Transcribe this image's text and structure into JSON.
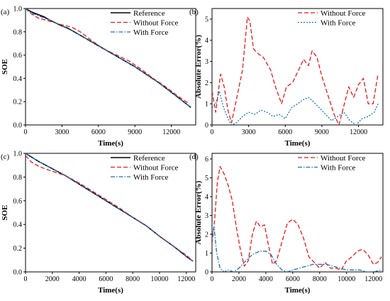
{
  "figure": {
    "colors": {
      "reference": "#000000",
      "without_force": "#e8191b",
      "with_force": "#1a73b0",
      "with_force_err_b": "#1a73b0"
    }
  },
  "chart_data": [
    {
      "id": "a",
      "panel_label": "(a)",
      "type": "line",
      "xlabel": "Time(s)",
      "ylabel": "SOE",
      "xlim": [
        0,
        14000
      ],
      "ylim": [
        0,
        1.0
      ],
      "xticks": [
        0,
        3000,
        6000,
        9000,
        12000
      ],
      "yticks": [
        0.0,
        0.2,
        0.4,
        0.6,
        0.8,
        1.0
      ],
      "legend": {
        "placement": "top-right"
      },
      "series": [
        {
          "name": "Reference",
          "style": "solid",
          "color": "#000000",
          "points": [
            [
              0,
              1.0
            ],
            [
              500,
              0.97
            ],
            [
              1000,
              0.95
            ],
            [
              1500,
              0.93
            ],
            [
              2000,
              0.9
            ],
            [
              3000,
              0.85
            ],
            [
              3500,
              0.83
            ],
            [
              4000,
              0.8
            ],
            [
              5000,
              0.74
            ],
            [
              6000,
              0.68
            ],
            [
              7000,
              0.62
            ],
            [
              8000,
              0.56
            ],
            [
              9000,
              0.5
            ],
            [
              10000,
              0.43
            ],
            [
              11000,
              0.36
            ],
            [
              12000,
              0.28
            ],
            [
              13000,
              0.2
            ],
            [
              13600,
              0.15
            ]
          ]
        },
        {
          "name": "Without Force",
          "style": "dash",
          "color": "#e8191b",
          "points": [
            [
              0,
              1.0
            ],
            [
              400,
              0.96
            ],
            [
              1000,
              0.92
            ],
            [
              2000,
              0.89
            ],
            [
              3000,
              0.86
            ],
            [
              3800,
              0.84
            ],
            [
              4500,
              0.8
            ],
            [
              5500,
              0.72
            ],
            [
              6500,
              0.65
            ],
            [
              7500,
              0.6
            ],
            [
              8500,
              0.55
            ],
            [
              9500,
              0.48
            ],
            [
              10500,
              0.4
            ],
            [
              11500,
              0.33
            ],
            [
              12500,
              0.25
            ],
            [
              13500,
              0.18
            ]
          ]
        },
        {
          "name": "With Force",
          "style": "dashdot",
          "color": "#1a73b0",
          "points": [
            [
              0,
              1.0
            ],
            [
              500,
              0.96
            ],
            [
              1000,
              0.94
            ],
            [
              2000,
              0.9
            ],
            [
              3000,
              0.85
            ],
            [
              4000,
              0.8
            ],
            [
              5000,
              0.74
            ],
            [
              6000,
              0.68
            ],
            [
              7000,
              0.62
            ],
            [
              8000,
              0.56
            ],
            [
              9000,
              0.5
            ],
            [
              10000,
              0.43
            ],
            [
              11000,
              0.36
            ],
            [
              12000,
              0.28
            ],
            [
              13000,
              0.2
            ],
            [
              13600,
              0.15
            ]
          ]
        }
      ]
    },
    {
      "id": "b",
      "panel_label": "(b)",
      "type": "line",
      "xlabel": "Time(s)",
      "ylabel": "Absolute Error(%)",
      "xlim": [
        0,
        14000
      ],
      "ylim": [
        0,
        5.5
      ],
      "xticks": [
        0,
        3000,
        6000,
        9000,
        12000
      ],
      "yticks": [
        0,
        1,
        2,
        3,
        4,
        5
      ],
      "legend": {
        "placement": "top-right"
      },
      "series": [
        {
          "name": "Without Force",
          "style": "dash",
          "color": "#e8191b",
          "points": [
            [
              0,
              1.6
            ],
            [
              300,
              0.6
            ],
            [
              700,
              2.4
            ],
            [
              1000,
              1.8
            ],
            [
              1300,
              0.7
            ],
            [
              1600,
              0.1
            ],
            [
              2000,
              1.2
            ],
            [
              2500,
              2.6
            ],
            [
              2900,
              5.1
            ],
            [
              3100,
              4.9
            ],
            [
              3400,
              3.6
            ],
            [
              3700,
              3.4
            ],
            [
              4200,
              3.2
            ],
            [
              4800,
              2.6
            ],
            [
              5200,
              1.8
            ],
            [
              5700,
              1.0
            ],
            [
              6100,
              1.8
            ],
            [
              6600,
              2.0
            ],
            [
              7100,
              2.6
            ],
            [
              7500,
              3.1
            ],
            [
              7900,
              2.8
            ],
            [
              8200,
              3.5
            ],
            [
              8600,
              3.2
            ],
            [
              9000,
              2.3
            ],
            [
              9500,
              1.4
            ],
            [
              10000,
              0.5
            ],
            [
              10400,
              0.0
            ],
            [
              10800,
              0.9
            ],
            [
              11200,
              1.8
            ],
            [
              11600,
              1.3
            ],
            [
              12000,
              1.9
            ],
            [
              12400,
              2.2
            ],
            [
              12800,
              1.0
            ],
            [
              13200,
              1.0
            ],
            [
              13600,
              2.4
            ]
          ]
        },
        {
          "name": "With Force",
          "style": "dot",
          "color": "#1a73b0",
          "points": [
            [
              0,
              0.8
            ],
            [
              300,
              1.0
            ],
            [
              600,
              1.6
            ],
            [
              900,
              0.9
            ],
            [
              1300,
              0.3
            ],
            [
              1600,
              0.0
            ],
            [
              2000,
              0.1
            ],
            [
              2500,
              0.4
            ],
            [
              3000,
              0.6
            ],
            [
              3500,
              0.5
            ],
            [
              4000,
              0.7
            ],
            [
              4500,
              0.6
            ],
            [
              5000,
              0.4
            ],
            [
              5500,
              0.5
            ],
            [
              6000,
              0.3
            ],
            [
              6500,
              0.8
            ],
            [
              7000,
              1.0
            ],
            [
              7500,
              1.2
            ],
            [
              7900,
              1.3
            ],
            [
              8300,
              1.1
            ],
            [
              8800,
              0.8
            ],
            [
              9300,
              0.5
            ],
            [
              9800,
              0.2
            ],
            [
              10300,
              0.4
            ],
            [
              10800,
              0.6
            ],
            [
              11300,
              0.2
            ],
            [
              11800,
              0.0
            ],
            [
              12300,
              0.3
            ],
            [
              12800,
              0.4
            ],
            [
              13300,
              0.6
            ],
            [
              13600,
              1.0
            ]
          ]
        }
      ]
    },
    {
      "id": "c",
      "panel_label": "(c)",
      "type": "line",
      "xlabel": "Time(s)",
      "ylabel": "SOE",
      "xlim": [
        0,
        12700
      ],
      "ylim": [
        0,
        1.0
      ],
      "xticks": [
        0,
        2000,
        4000,
        6000,
        8000,
        10000,
        12000
      ],
      "yticks": [
        0.0,
        0.2,
        0.4,
        0.6,
        0.8,
        1.0
      ],
      "legend": {
        "placement": "top-right"
      },
      "series": [
        {
          "name": "Reference",
          "style": "solid",
          "color": "#000000",
          "points": [
            [
              0,
              1.0
            ],
            [
              1000,
              0.93
            ],
            [
              2000,
              0.87
            ],
            [
              3000,
              0.81
            ],
            [
              4000,
              0.74
            ],
            [
              5000,
              0.67
            ],
            [
              6000,
              0.6
            ],
            [
              7000,
              0.53
            ],
            [
              8000,
              0.46
            ],
            [
              9000,
              0.39
            ],
            [
              10000,
              0.3
            ],
            [
              11000,
              0.22
            ],
            [
              12000,
              0.13
            ],
            [
              12500,
              0.09
            ]
          ]
        },
        {
          "name": "Without Force",
          "style": "dash",
          "color": "#e8191b",
          "points": [
            [
              0,
              0.98
            ],
            [
              400,
              0.93
            ],
            [
              1000,
              0.89
            ],
            [
              1700,
              0.86
            ],
            [
              2500,
              0.83
            ],
            [
              3000,
              0.81
            ],
            [
              4000,
              0.75
            ],
            [
              5000,
              0.68
            ],
            [
              6000,
              0.61
            ],
            [
              7000,
              0.54
            ],
            [
              8000,
              0.46
            ],
            [
              9000,
              0.39
            ],
            [
              10000,
              0.3
            ],
            [
              11000,
              0.22
            ],
            [
              12000,
              0.14
            ],
            [
              12500,
              0.09
            ]
          ]
        },
        {
          "name": "With Force",
          "style": "dashdot",
          "color": "#1a73b0",
          "points": [
            [
              0,
              1.0
            ],
            [
              1000,
              0.93
            ],
            [
              2000,
              0.87
            ],
            [
              3000,
              0.81
            ],
            [
              4000,
              0.74
            ],
            [
              5000,
              0.67
            ],
            [
              6000,
              0.6
            ],
            [
              7000,
              0.53
            ],
            [
              8000,
              0.46
            ],
            [
              9000,
              0.39
            ],
            [
              10000,
              0.3
            ],
            [
              11000,
              0.22
            ],
            [
              12000,
              0.13
            ],
            [
              12500,
              0.09
            ]
          ]
        }
      ]
    },
    {
      "id": "d",
      "panel_label": "(d)",
      "type": "line",
      "xlabel": "Time(s)",
      "ylabel": "Absolute Error(%)",
      "xlim": [
        0,
        12700
      ],
      "ylim": [
        0,
        6.3
      ],
      "xticks": [
        0,
        2000,
        4000,
        6000,
        8000,
        10000,
        12000
      ],
      "yticks": [
        0,
        1,
        2,
        3,
        4,
        5,
        6
      ],
      "legend": {
        "placement": "top-right"
      },
      "series": [
        {
          "name": "Without Force",
          "style": "dash",
          "color": "#e8191b",
          "points": [
            [
              0,
              1.5
            ],
            [
              200,
              2.8
            ],
            [
              400,
              4.8
            ],
            [
              600,
              5.6
            ],
            [
              900,
              5.2
            ],
            [
              1200,
              4.6
            ],
            [
              1500,
              3.8
            ],
            [
              1800,
              2.4
            ],
            [
              2100,
              1.2
            ],
            [
              2400,
              0.3
            ],
            [
              2700,
              0.6
            ],
            [
              3000,
              2.0
            ],
            [
              3300,
              2.7
            ],
            [
              3600,
              2.4
            ],
            [
              3900,
              2.5
            ],
            [
              4200,
              1.4
            ],
            [
              4500,
              0.4
            ],
            [
              4800,
              0.6
            ],
            [
              5200,
              1.6
            ],
            [
              5600,
              2.6
            ],
            [
              6000,
              2.8
            ],
            [
              6400,
              2.5
            ],
            [
              6800,
              1.8
            ],
            [
              7200,
              0.8
            ],
            [
              7600,
              0.5
            ],
            [
              8000,
              0.2
            ],
            [
              8400,
              0.5
            ],
            [
              8800,
              0.2
            ],
            [
              9200,
              0.2
            ],
            [
              9600,
              0.1
            ],
            [
              10000,
              0.6
            ],
            [
              10400,
              0.8
            ],
            [
              10800,
              1.1
            ],
            [
              11200,
              1.2
            ],
            [
              11600,
              0.9
            ],
            [
              12000,
              0.4
            ],
            [
              12300,
              0.5
            ],
            [
              12600,
              0.8
            ]
          ]
        },
        {
          "name": "With Force",
          "style": "dashdot",
          "color": "#1a73b0",
          "points": [
            [
              0,
              1.8
            ],
            [
              150,
              2.4
            ],
            [
              350,
              1.0
            ],
            [
              600,
              0.2
            ],
            [
              900,
              0.0
            ],
            [
              1200,
              0.1
            ],
            [
              1600,
              0.0
            ],
            [
              2000,
              0.2
            ],
            [
              2400,
              0.5
            ],
            [
              2800,
              0.8
            ],
            [
              3200,
              1.0
            ],
            [
              3600,
              1.1
            ],
            [
              4000,
              1.1
            ],
            [
              4400,
              0.9
            ],
            [
              4800,
              0.4
            ],
            [
              5200,
              0.1
            ],
            [
              5600,
              0.0
            ],
            [
              6000,
              0.1
            ],
            [
              6500,
              0.2
            ],
            [
              7000,
              0.3
            ],
            [
              7500,
              0.4
            ],
            [
              8000,
              0.4
            ],
            [
              8500,
              0.4
            ],
            [
              9000,
              0.3
            ],
            [
              9500,
              0.2
            ],
            [
              10000,
              0.1
            ],
            [
              10500,
              0.1
            ],
            [
              11000,
              0.1
            ],
            [
              11500,
              0.0
            ],
            [
              12000,
              0.0
            ],
            [
              12600,
              0.1
            ]
          ]
        }
      ]
    }
  ]
}
